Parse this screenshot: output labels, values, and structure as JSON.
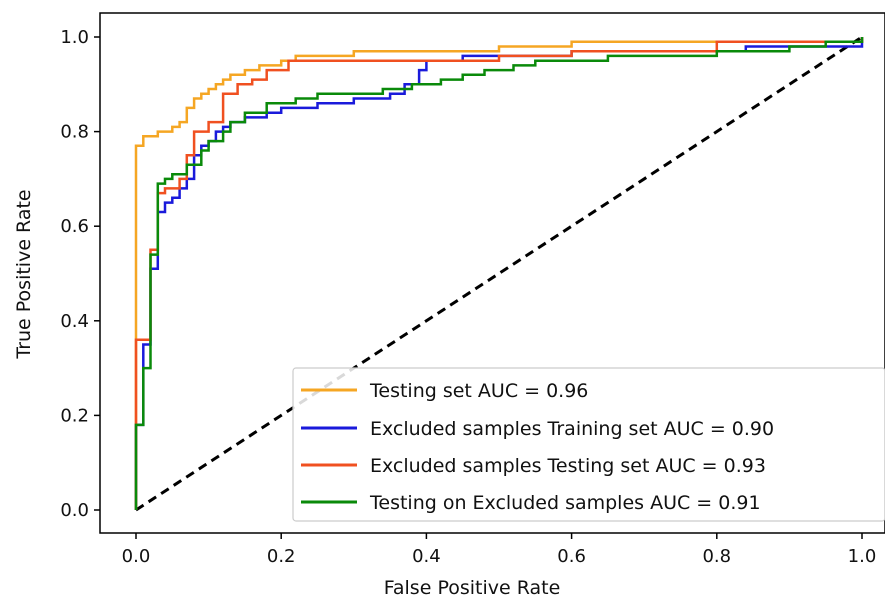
{
  "chart_data": {
    "type": "line",
    "title": "",
    "xlabel": "False Positive Rate",
    "ylabel": "True Positive Rate",
    "xlim": [
      0.0,
      1.0
    ],
    "ylim": [
      0.0,
      1.0
    ],
    "xticks": [
      "0.0",
      "0.2",
      "0.4",
      "0.6",
      "0.8",
      "1.0"
    ],
    "yticks": [
      "0.0",
      "0.2",
      "0.4",
      "0.6",
      "0.8",
      "1.0"
    ],
    "grid": false,
    "legend_position": "lower-right",
    "diagonal": {
      "points": [
        [
          0,
          0
        ],
        [
          1,
          1
        ]
      ],
      "style": "dashed",
      "color": "#000000"
    },
    "series": [
      {
        "name": "Testing set AUC = 0.96",
        "color": "#f5a623",
        "points": [
          [
            0,
            0
          ],
          [
            0,
            0.77
          ],
          [
            0.01,
            0.78
          ],
          [
            0.01,
            0.79
          ],
          [
            0.03,
            0.8
          ],
          [
            0.05,
            0.81
          ],
          [
            0.06,
            0.82
          ],
          [
            0.07,
            0.85
          ],
          [
            0.08,
            0.87
          ],
          [
            0.09,
            0.88
          ],
          [
            0.1,
            0.89
          ],
          [
            0.11,
            0.9
          ],
          [
            0.12,
            0.91
          ],
          [
            0.13,
            0.92
          ],
          [
            0.15,
            0.93
          ],
          [
            0.17,
            0.94
          ],
          [
            0.2,
            0.95
          ],
          [
            0.22,
            0.96
          ],
          [
            0.3,
            0.97
          ],
          [
            0.5,
            0.98
          ],
          [
            0.6,
            0.99
          ],
          [
            0.8,
            0.99
          ],
          [
            1,
            1
          ]
        ]
      },
      {
        "name": "Excluded samples Training set AUC = 0.90",
        "color": "#1a1adb",
        "points": [
          [
            0,
            0
          ],
          [
            0,
            0.18
          ],
          [
            0.01,
            0.19
          ],
          [
            0.01,
            0.35
          ],
          [
            0.02,
            0.4
          ],
          [
            0.02,
            0.51
          ],
          [
            0.03,
            0.55
          ],
          [
            0.03,
            0.63
          ],
          [
            0.04,
            0.65
          ],
          [
            0.05,
            0.66
          ],
          [
            0.06,
            0.68
          ],
          [
            0.07,
            0.7
          ],
          [
            0.08,
            0.75
          ],
          [
            0.09,
            0.77
          ],
          [
            0.1,
            0.78
          ],
          [
            0.11,
            0.8
          ],
          [
            0.12,
            0.81
          ],
          [
            0.13,
            0.82
          ],
          [
            0.15,
            0.83
          ],
          [
            0.18,
            0.84
          ],
          [
            0.2,
            0.85
          ],
          [
            0.25,
            0.86
          ],
          [
            0.3,
            0.87
          ],
          [
            0.35,
            0.88
          ],
          [
            0.37,
            0.9
          ],
          [
            0.39,
            0.93
          ],
          [
            0.4,
            0.95
          ],
          [
            0.45,
            0.96
          ],
          [
            0.6,
            0.97
          ],
          [
            0.8,
            0.97
          ],
          [
            0.84,
            0.98
          ],
          [
            1,
            1
          ]
        ]
      },
      {
        "name": "Excluded samples Testing set AUC = 0.93",
        "color": "#f05020",
        "points": [
          [
            0,
            0
          ],
          [
            0,
            0.22
          ],
          [
            0,
            0.36
          ],
          [
            0.02,
            0.36
          ],
          [
            0.02,
            0.55
          ],
          [
            0.03,
            0.67
          ],
          [
            0.04,
            0.68
          ],
          [
            0.06,
            0.7
          ],
          [
            0.07,
            0.75
          ],
          [
            0.08,
            0.8
          ],
          [
            0.1,
            0.82
          ],
          [
            0.12,
            0.85
          ],
          [
            0.12,
            0.88
          ],
          [
            0.14,
            0.9
          ],
          [
            0.16,
            0.91
          ],
          [
            0.18,
            0.93
          ],
          [
            0.2,
            0.93
          ],
          [
            0.21,
            0.95
          ],
          [
            0.3,
            0.95
          ],
          [
            0.5,
            0.96
          ],
          [
            0.6,
            0.97
          ],
          [
            0.8,
            0.99
          ],
          [
            1,
            1
          ]
        ]
      },
      {
        "name": "Testing on Excluded samples AUC = 0.91",
        "color": "#0a8a0a",
        "points": [
          [
            0,
            0
          ],
          [
            0,
            0.18
          ],
          [
            0.01,
            0.3
          ],
          [
            0.02,
            0.4
          ],
          [
            0.02,
            0.54
          ],
          [
            0.03,
            0.69
          ],
          [
            0.04,
            0.7
          ],
          [
            0.05,
            0.71
          ],
          [
            0.07,
            0.73
          ],
          [
            0.09,
            0.76
          ],
          [
            0.1,
            0.78
          ],
          [
            0.12,
            0.8
          ],
          [
            0.13,
            0.82
          ],
          [
            0.15,
            0.84
          ],
          [
            0.18,
            0.86
          ],
          [
            0.22,
            0.87
          ],
          [
            0.25,
            0.88
          ],
          [
            0.3,
            0.88
          ],
          [
            0.34,
            0.89
          ],
          [
            0.38,
            0.9
          ],
          [
            0.42,
            0.91
          ],
          [
            0.45,
            0.92
          ],
          [
            0.48,
            0.93
          ],
          [
            0.52,
            0.94
          ],
          [
            0.55,
            0.95
          ],
          [
            0.65,
            0.96
          ],
          [
            0.8,
            0.97
          ],
          [
            0.9,
            0.98
          ],
          [
            0.95,
            0.99
          ],
          [
            1,
            1
          ]
        ]
      }
    ]
  }
}
